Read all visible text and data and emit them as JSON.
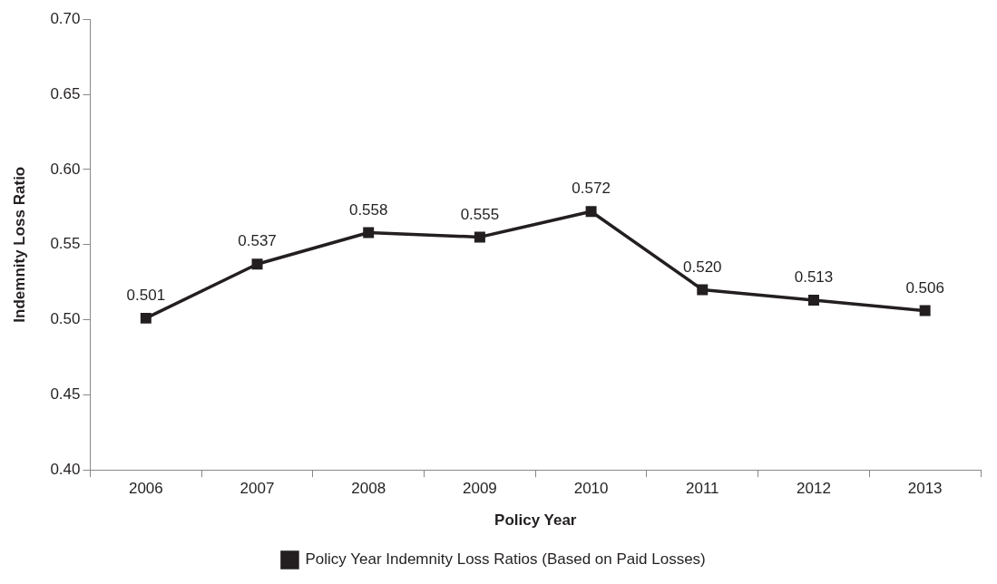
{
  "chart_data": {
    "type": "line",
    "xlabel": "Policy Year",
    "ylabel": "Indemnity Loss Ratio",
    "categories": [
      "2006",
      "2007",
      "2008",
      "2009",
      "2010",
      "2011",
      "2012",
      "2013"
    ],
    "series": [
      {
        "name": "Policy Year Indemnity Loss Ratios (Based on Paid Losses)",
        "color": "#231f20",
        "values": [
          0.501,
          0.537,
          0.558,
          0.555,
          0.572,
          0.52,
          0.513,
          0.506
        ],
        "value_labels": [
          "0.501",
          "0.537",
          "0.558",
          "0.555",
          "0.572",
          "0.520",
          "0.513",
          "0.506"
        ]
      }
    ],
    "ylim": [
      0.4,
      0.7
    ],
    "yticks": [
      {
        "value": 0.4,
        "label": "0.40"
      },
      {
        "value": 0.45,
        "label": "0.45"
      },
      {
        "value": 0.5,
        "label": "0.50"
      },
      {
        "value": 0.55,
        "label": "0.55"
      },
      {
        "value": 0.6,
        "label": "0.60"
      },
      {
        "value": 0.65,
        "label": "0.65"
      },
      {
        "value": 0.7,
        "label": "0.70"
      }
    ],
    "grid": false,
    "legend": "bottom",
    "marker": "square",
    "line_style": "solid"
  }
}
